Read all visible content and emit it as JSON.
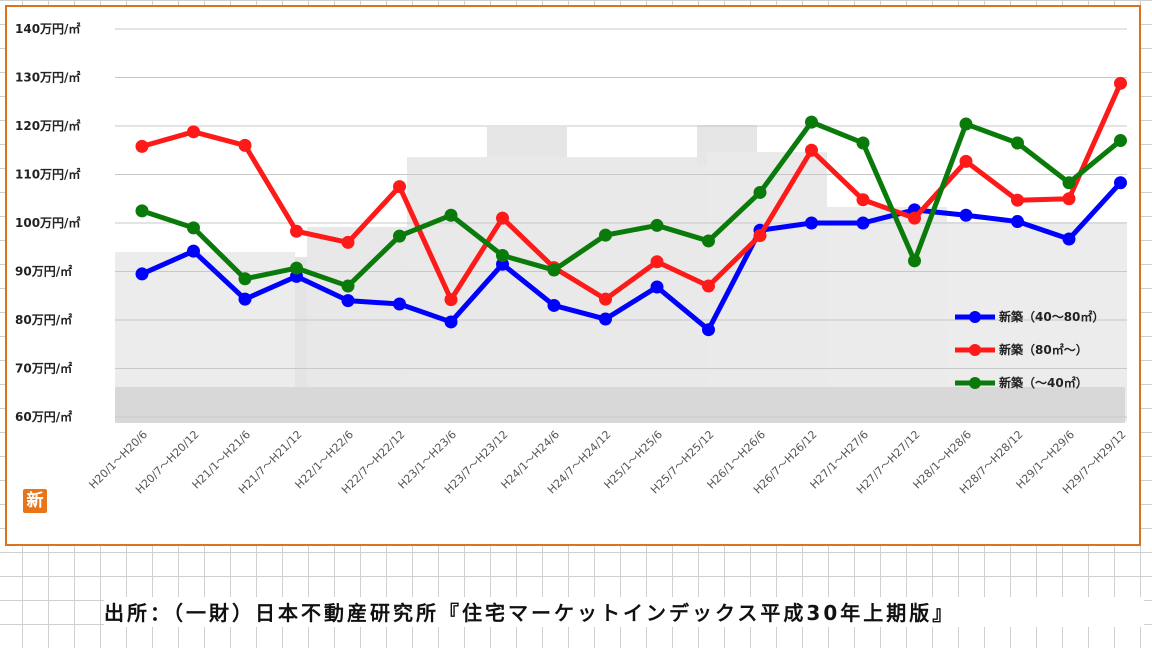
{
  "badge": "新",
  "source": "出所：（一財）日本不動産研究所『住宅マーケットインデックス平成30年上期版』",
  "colors": {
    "frame": "#d9731f",
    "blue": "#0000ff",
    "red": "#ff1a1a",
    "green": "#0a7a0a",
    "badge": "#e8751a"
  },
  "chart_data": {
    "type": "line",
    "ylim": [
      60,
      140
    ],
    "yticks": [
      {
        "v": 60,
        "label": "60万円/㎡"
      },
      {
        "v": 70,
        "label": "70万円/㎡"
      },
      {
        "v": 80,
        "label": "80万円/㎡"
      },
      {
        "v": 90,
        "label": "90万円/㎡"
      },
      {
        "v": 100,
        "label": "100万円/㎡"
      },
      {
        "v": 110,
        "label": "110万円/㎡"
      },
      {
        "v": 120,
        "label": "120万円/㎡"
      },
      {
        "v": 130,
        "label": "130万円/㎡"
      },
      {
        "v": 140,
        "label": "140万円/㎡"
      }
    ],
    "categories": [
      "H20/1～H20/6",
      "H20/7～H20/12",
      "H21/1～H21/6",
      "H21/7～H21/12",
      "H22/1～H22/6",
      "H22/7～H22/12",
      "H23/1～H23/6",
      "H23/7～H23/12",
      "H24/1～H24/6",
      "H24/7～H24/12",
      "H25/1～H25/6",
      "H25/7～H25/12",
      "H26/1～H26/6",
      "H26/7～H26/12",
      "H27/1～H27/6",
      "H27/7～H27/12",
      "H28/1～H28/6",
      "H28/7～H28/12",
      "H29/1～H29/6",
      "H29/7～H29/12"
    ],
    "series": [
      {
        "name": "新築（40～80㎡）",
        "color": "#0000ff",
        "values": [
          89.5,
          94.2,
          84.3,
          89.0,
          84.0,
          83.3,
          79.6,
          91.5,
          83.0,
          80.2,
          86.8,
          78.0,
          98.5,
          100.0,
          100.0,
          102.7,
          101.6,
          100.3,
          96.7,
          108.3
        ]
      },
      {
        "name": "新築（80㎡～）",
        "color": "#ff1a1a",
        "values": [
          115.8,
          118.8,
          116.0,
          98.3,
          96.0,
          107.5,
          84.2,
          101.0,
          90.8,
          84.3,
          92.0,
          87.0,
          97.4,
          115.0,
          104.8,
          101.0,
          112.7,
          104.7,
          105.0,
          128.8
        ]
      },
      {
        "name": "新築（～40㎡）",
        "color": "#0a7a0a",
        "values": [
          102.5,
          99.0,
          88.5,
          90.7,
          87.0,
          97.3,
          101.6,
          93.3,
          90.3,
          97.5,
          99.5,
          96.3,
          106.3,
          120.8,
          116.5,
          92.2,
          120.4,
          116.5,
          108.3,
          117.0
        ]
      }
    ],
    "legend_position": "right",
    "grid": true
  }
}
